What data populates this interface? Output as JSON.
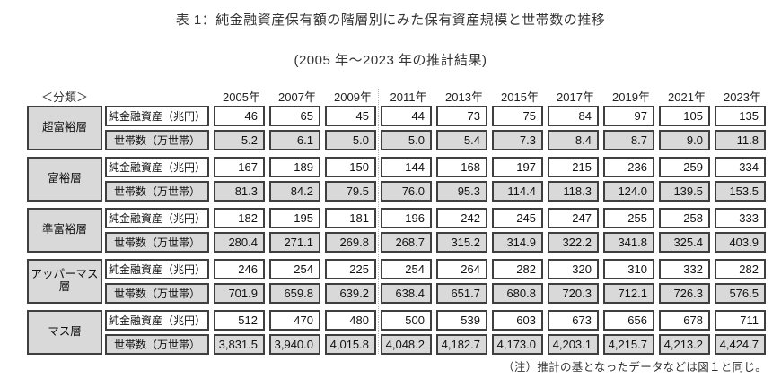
{
  "chart_data": {
    "type": "table",
    "title": "表 1：純金融資産保有額の階層別にみた保有資産規模と世帯数の推移",
    "subtitle": "(2005 年～2023 年の推計結果)",
    "classification_label": "＜分類＞",
    "years": [
      "2005年",
      "2007年",
      "2009年",
      "2011年",
      "2013年",
      "2015年",
      "2017年",
      "2019年",
      "2021年",
      "2023年"
    ],
    "row_labels": {
      "assets": "純金融資産（兆円）",
      "households": "世帯数（万世帯）"
    },
    "groups": [
      {
        "name": "超富裕層",
        "assets": [
          "46",
          "65",
          "45",
          "44",
          "73",
          "75",
          "84",
          "97",
          "105",
          "135"
        ],
        "households": [
          "5.2",
          "6.1",
          "5.0",
          "5.0",
          "5.4",
          "7.3",
          "8.4",
          "8.7",
          "9.0",
          "11.8"
        ]
      },
      {
        "name": "富裕層",
        "assets": [
          "167",
          "189",
          "150",
          "144",
          "168",
          "197",
          "215",
          "236",
          "259",
          "334"
        ],
        "households": [
          "81.3",
          "84.2",
          "79.5",
          "76.0",
          "95.3",
          "114.4",
          "118.3",
          "124.0",
          "139.5",
          "153.5"
        ]
      },
      {
        "name": "準富裕層",
        "assets": [
          "182",
          "195",
          "181",
          "196",
          "242",
          "245",
          "247",
          "255",
          "258",
          "333"
        ],
        "households": [
          "280.4",
          "271.1",
          "269.8",
          "268.7",
          "315.2",
          "314.9",
          "322.2",
          "341.8",
          "325.4",
          "403.9"
        ]
      },
      {
        "name": "アッパーマス層",
        "assets": [
          "246",
          "254",
          "225",
          "254",
          "264",
          "282",
          "320",
          "310",
          "332",
          "282"
        ],
        "households": [
          "701.9",
          "659.8",
          "639.2",
          "638.4",
          "651.7",
          "680.8",
          "720.3",
          "712.1",
          "726.3",
          "576.5"
        ]
      },
      {
        "name": "マス層",
        "assets": [
          "512",
          "470",
          "480",
          "500",
          "539",
          "603",
          "673",
          "656",
          "678",
          "711"
        ],
        "households": [
          "3,831.5",
          "3,940.0",
          "4,015.8",
          "4,048.2",
          "4,182.7",
          "4,173.0",
          "4,203.1",
          "4,215.7",
          "4,213.2",
          "4,424.7"
        ]
      }
    ],
    "footnote": "（注）推計の基となったデータなどは図１と同じ。"
  },
  "colors": {
    "shaded_cell": "#d9d9d9",
    "border": "#3f3f3f",
    "background": "#ffffff"
  }
}
